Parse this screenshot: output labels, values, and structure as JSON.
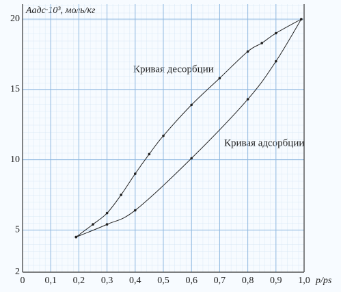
{
  "chart_data": {
    "type": "line",
    "y_label": "Aадс·10³, моль/кг",
    "x_label": "p/ps",
    "xlim": [
      0,
      1.0
    ],
    "xticks": [
      0,
      {
        "value": 0.1,
        "label": "0,1"
      },
      {
        "value": 0.2,
        "label": "0,2"
      },
      {
        "value": 0.3,
        "label": "0,3"
      },
      {
        "value": 0.4,
        "label": "0,4"
      },
      {
        "value": 0.5,
        "label": "0,5"
      },
      {
        "value": 0.6,
        "label": "0,6"
      },
      {
        "value": 0.7,
        "label": "0,7"
      },
      {
        "value": 0.8,
        "label": "0,8"
      },
      {
        "value": 0.9,
        "label": "0,9"
      },
      {
        "value": 1.0,
        "label": "1,0"
      }
    ],
    "ylim": [
      2,
      20
    ],
    "yticks": [
      2,
      5,
      10,
      15,
      20
    ],
    "grid": true,
    "series": [
      {
        "name": "Кривая десорбции",
        "color": "#222222",
        "x": [
          0.19,
          0.25,
          0.3,
          0.35,
          0.4,
          0.45,
          0.5,
          0.6,
          0.7,
          0.8,
          0.85,
          0.9,
          0.99
        ],
        "values": [
          4.5,
          5.4,
          6.2,
          7.5,
          9.0,
          10.4,
          11.7,
          13.9,
          15.8,
          17.7,
          18.3,
          19.0,
          20.0
        ]
      },
      {
        "name": "Кривая адсорбции",
        "color": "#222222",
        "x": [
          0.19,
          0.3,
          0.4,
          0.6,
          0.8,
          0.9,
          0.99
        ],
        "values": [
          4.5,
          5.4,
          6.4,
          10.1,
          14.3,
          17.0,
          20.0
        ]
      }
    ]
  }
}
